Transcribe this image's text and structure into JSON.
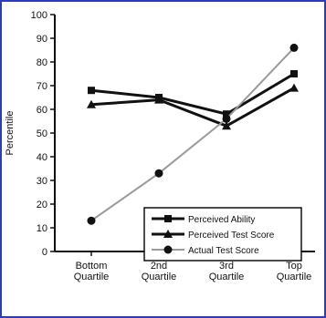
{
  "chart_data": {
    "type": "line",
    "title": "",
    "xlabel": "",
    "ylabel": "Percentile",
    "ylim": [
      0,
      100
    ],
    "yticks": [
      0,
      10,
      20,
      30,
      40,
      50,
      60,
      70,
      80,
      90,
      100
    ],
    "categories": [
      [
        "Bottom",
        "Quartile"
      ],
      [
        "2nd",
        "Quartile"
      ],
      [
        "3rd",
        "Quartile"
      ],
      [
        "Top",
        "Quartile"
      ]
    ],
    "legend_position": "bottom-right",
    "grid": false,
    "series": [
      {
        "name": "Perceived Ability",
        "values": [
          68,
          65,
          58,
          75
        ],
        "marker": "square",
        "color": "#111111"
      },
      {
        "name": "Perceived Test Score",
        "values": [
          62,
          64,
          53,
          69
        ],
        "marker": "triangle",
        "color": "#111111"
      },
      {
        "name": "Actual Test Score",
        "values": [
          13,
          33,
          56,
          86
        ],
        "marker": "circle",
        "color": "#9a9a9a"
      }
    ]
  }
}
